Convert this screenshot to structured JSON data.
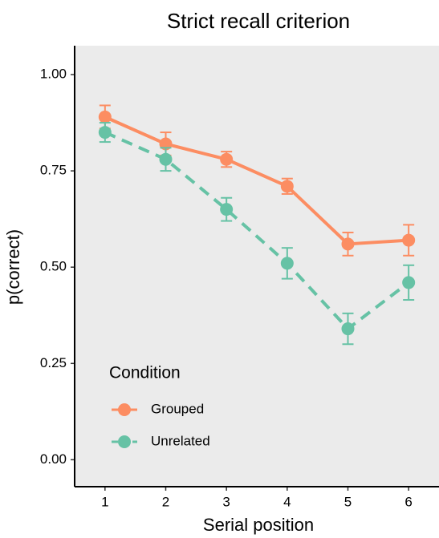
{
  "chart_data": {
    "type": "line",
    "title": "Strict recall criterion",
    "xlabel": "Serial position",
    "ylabel": "p(correct)",
    "x": [
      1,
      2,
      3,
      4,
      5,
      6
    ],
    "series": [
      {
        "name": "Grouped",
        "color": "#fc8d62",
        "linestyle": "solid",
        "values": [
          0.89,
          0.82,
          0.78,
          0.71,
          0.56,
          0.57
        ],
        "errors": [
          0.03,
          0.03,
          0.02,
          0.02,
          0.03,
          0.04
        ]
      },
      {
        "name": "Unrelated",
        "color": "#66c2a5",
        "linestyle": "dashed",
        "values": [
          0.85,
          0.78,
          0.65,
          0.51,
          0.34,
          0.46
        ],
        "errors": [
          0.025,
          0.03,
          0.03,
          0.04,
          0.04,
          0.045
        ]
      }
    ],
    "xlim": [
      0.5,
      6.5
    ],
    "xticks": [
      1,
      2,
      3,
      4,
      5,
      6
    ],
    "ylim": [
      -0.07,
      1.075
    ],
    "yticks": [
      {
        "value": 0,
        "label": "0.00"
      },
      {
        "value": 0.25,
        "label": "0.25"
      },
      {
        "value": 0.5,
        "label": "0.50"
      },
      {
        "value": 0.75,
        "label": "0.75"
      },
      {
        "value": 1,
        "label": "1.00"
      }
    ],
    "grid": false,
    "background": "#ebebeb",
    "legend": {
      "title": "Condition",
      "position": "bottom-left"
    }
  }
}
